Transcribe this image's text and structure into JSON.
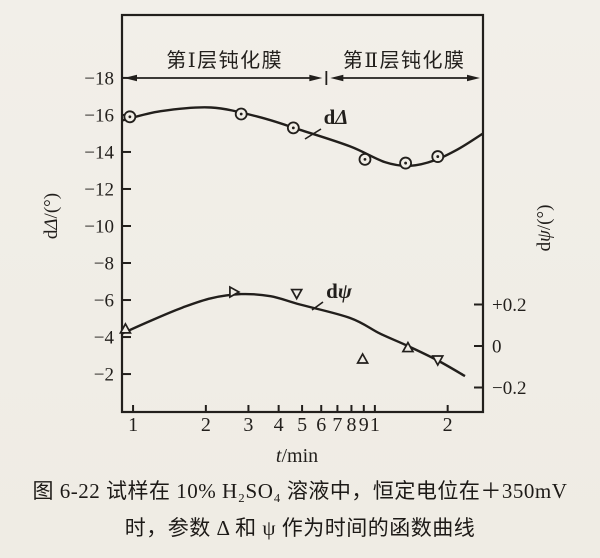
{
  "page": {
    "background": "#f1eee7",
    "ink": "#221f1c"
  },
  "caption": {
    "line1": "图 6-22  试样在 10% H₂SO₄ 溶液中，恒定电位在＋350mV",
    "line2": "时，参数 Δ 和 ψ 作为时间的函数曲线"
  },
  "chart_data": {
    "type": "line",
    "x_axis": {
      "label": "t/min",
      "scale": "log",
      "range": [
        0.9,
        28
      ],
      "tick_values": [
        1,
        2,
        3,
        4,
        5,
        6,
        7,
        8,
        9,
        10,
        20
      ],
      "tick_labels": [
        "1",
        "2",
        "3",
        "4",
        "5",
        "6",
        "7",
        "8",
        "9",
        "1",
        "2"
      ]
    },
    "y_axis_left": {
      "label": "dΔ/(°)",
      "range_top_to_bottom": [
        -21.4,
        0.05
      ],
      "tick_values": [
        -18,
        -16,
        -14,
        -12,
        -10,
        -8,
        -6,
        -4,
        -2
      ],
      "tick_labels": [
        "−18",
        "−16",
        "−14",
        "−12",
        "−10",
        "−8",
        "−6",
        "−4",
        "−2"
      ]
    },
    "y_axis_right": {
      "label": "dψ/(°)",
      "range_top_to_bottom": [
        1.595,
        -0.318
      ],
      "tick_values": [
        0.2,
        0,
        -0.2
      ],
      "tick_labels": [
        "+0.2",
        "0",
        "−0.2"
      ]
    },
    "annotations": {
      "bands": [
        {
          "label": "第Ⅰ层钝化膜",
          "t_start": 0.9,
          "t_end": 6.3
        },
        {
          "label": "第Ⅱ层钝化膜",
          "t_start": 6.3,
          "t_end": 28
        }
      ]
    },
    "series": [
      {
        "name": "dΔ",
        "axis": "left",
        "marker": "circled-dot",
        "curve_points": [
          [
            0.9,
            -15.7
          ],
          [
            1.3,
            -16.2
          ],
          [
            2.1,
            -16.4
          ],
          [
            3.3,
            -15.9
          ],
          [
            4.9,
            -15.2
          ],
          [
            7.9,
            -14.3
          ],
          [
            11,
            -13.45
          ],
          [
            14,
            -13.25
          ],
          [
            17.7,
            -13.55
          ],
          [
            22.4,
            -14.2
          ],
          [
            28,
            -15.0
          ]
        ],
        "data_points": [
          {
            "t": 0.97,
            "v": -15.9
          },
          {
            "t": 2.8,
            "v": -16.05
          },
          {
            "t": 4.6,
            "v": -15.3
          },
          {
            "t": 9.1,
            "v": -13.6
          },
          {
            "t": 13.4,
            "v": -13.4
          },
          {
            "t": 18.2,
            "v": -13.75
          }
        ]
      },
      {
        "name": "dψ",
        "axis": "right",
        "marker": "triangle",
        "curve_points": [
          [
            0.9,
            0.06
          ],
          [
            1.2,
            0.125
          ],
          [
            1.6,
            0.185
          ],
          [
            2.1,
            0.23
          ],
          [
            2.8,
            0.25
          ],
          [
            3.7,
            0.24
          ],
          [
            4.9,
            0.2
          ],
          [
            7.9,
            0.135
          ],
          [
            10.5,
            0.06
          ],
          [
            13.7,
            0.0
          ],
          [
            18.2,
            -0.07
          ],
          [
            23.6,
            -0.145
          ]
        ],
        "data_points": [
          {
            "t": 0.93,
            "v": 0.08,
            "shape": "up"
          },
          {
            "t": 2.6,
            "v": 0.26,
            "shape": "right"
          },
          {
            "t": 4.75,
            "v": 0.255,
            "shape": "down"
          },
          {
            "t": 8.9,
            "v": -0.065,
            "shape": "up"
          },
          {
            "t": 13.7,
            "v": -0.01,
            "shape": "up"
          },
          {
            "t": 18.2,
            "v": -0.065,
            "shape": "down"
          }
        ]
      }
    ]
  }
}
